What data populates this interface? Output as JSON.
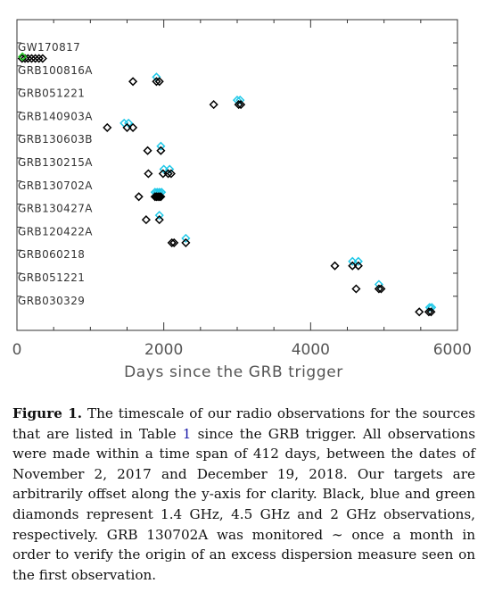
{
  "chart_data": {
    "type": "scatter",
    "xlabel": "Days since the GRB trigger",
    "xlim": [
      0,
      6000
    ],
    "xticks": [
      "0",
      "2000",
      "4000",
      "6000"
    ],
    "grid": false,
    "marker": "diamond",
    "series_colors": {
      "1.4GHz": "#000000",
      "4.5GHz": "#1ec8e8",
      "2GHz": "#22cc22"
    },
    "sources": [
      {
        "name": "GW170817",
        "black": [
          70,
          110,
          150,
          200,
          250,
          300,
          350
        ],
        "blue": [],
        "green": [
          75
        ]
      },
      {
        "name": "GRB100816A",
        "black": [
          1580,
          1900,
          1940
        ],
        "blue": [
          1900
        ],
        "green": []
      },
      {
        "name": "GRB051221",
        "black": [
          2680,
          3020,
          3050
        ],
        "blue": [
          3000,
          3040
        ],
        "green": []
      },
      {
        "name": "GRB140903A",
        "black": [
          1230,
          1500,
          1580
        ],
        "blue": [
          1460,
          1520
        ],
        "green": []
      },
      {
        "name": "GRB130603B",
        "black": [
          1780,
          1960
        ],
        "blue": [
          1960
        ],
        "green": []
      },
      {
        "name": "GRB130215A",
        "black": [
          1790,
          1990,
          2060,
          2100
        ],
        "blue": [
          2000,
          2080
        ],
        "green": []
      },
      {
        "name": "GRB130702A",
        "black": [
          1660,
          1880,
          1900,
          1920,
          1940,
          1960
        ],
        "blue": [
          1880,
          1910,
          1940,
          1970
        ],
        "green": []
      },
      {
        "name": "GRB130427A",
        "black": [
          1760,
          1940
        ],
        "blue": [
          1940
        ],
        "green": []
      },
      {
        "name": "GRB120422A",
        "black": [
          2110,
          2140,
          2300
        ],
        "blue": [
          2300
        ],
        "green": []
      },
      {
        "name": "GRB060218",
        "black": [
          4330,
          4570,
          4650
        ],
        "blue": [
          4570,
          4650
        ],
        "green": []
      },
      {
        "name": "GRB051221",
        "black": [
          4620,
          4930,
          4960
        ],
        "blue": [
          4930
        ],
        "green": []
      },
      {
        "name": "GRB030329",
        "black": [
          5480,
          5610,
          5640
        ],
        "blue": [
          5620,
          5650
        ],
        "green": []
      }
    ]
  },
  "caption": {
    "label": "Figure 1.",
    "text_1": " The timescale of our radio observations for the sources that are listed in Table ",
    "ref": "1",
    "text_2": " since the GRB trigger. All observations were made within a time span of 412 days, between the dates of November 2, 2017 and December 19, 2018. Our targets are arbitrarily offset along the y-axis for clarity. Black, blue and green diamonds represent 1.4 GHz, 4.5 GHz and 2 GHz observations, respectively. GRB 130702A was monitored ∼ once a month in order to verify the origin of an excess dispersion measure seen on the first observation."
  }
}
